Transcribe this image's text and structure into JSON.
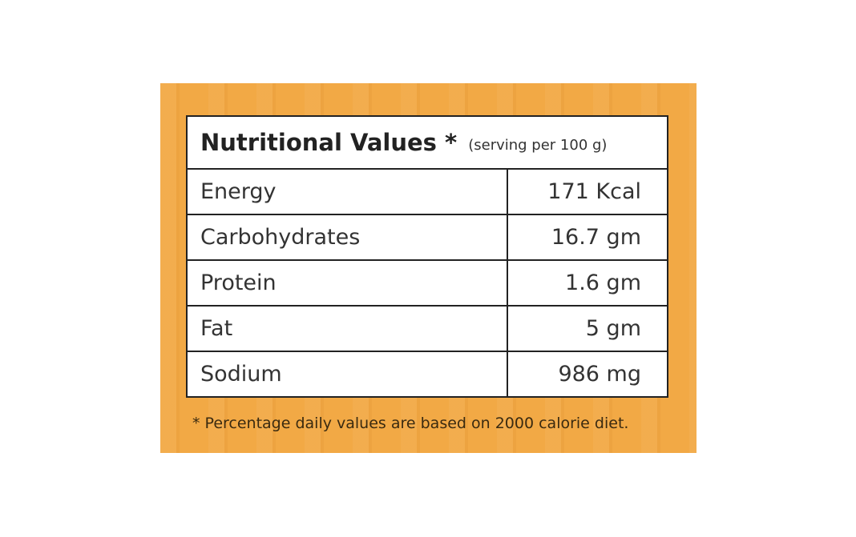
{
  "table": {
    "title": "Nutritional Values *",
    "subtitle": "(serving per 100 g)",
    "rows": [
      [
        "Energy",
        "171 Kcal"
      ],
      [
        "Carbohydrates",
        "16.7 gm"
      ],
      [
        "Protein",
        "1.6 gm"
      ],
      [
        "Fat",
        "5 gm"
      ],
      [
        "Sodium",
        "986 mg"
      ]
    ],
    "footnote": "* Percentage daily values are based on 2000 calorie diet."
  }
}
